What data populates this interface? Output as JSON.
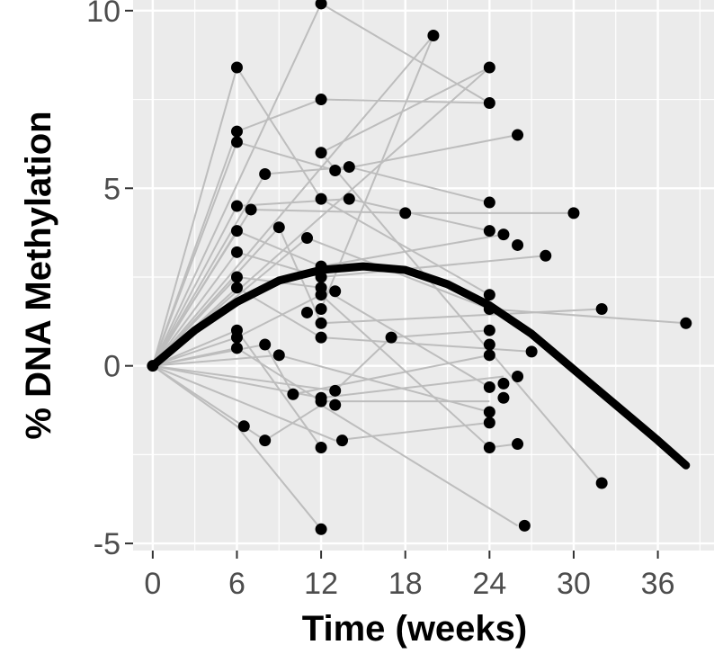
{
  "chart_data": {
    "type": "scatter",
    "title": "",
    "xlabel": "Time (weeks)",
    "ylabel": "% DNA Methylation",
    "xlim": [
      -1.4,
      40.0
    ],
    "ylim": [
      -5.2,
      10.3
    ],
    "x_ticks": [
      0,
      6,
      12,
      18,
      24,
      30,
      36
    ],
    "y_ticks": [
      -5,
      0,
      5,
      10
    ],
    "grid": true,
    "legend": "none",
    "colors": {
      "panel_background": "#ebebeb",
      "grid": "#ffffff",
      "points": "#000000",
      "subject_lines": "#bdbdbd",
      "fit_curve": "#000000"
    },
    "series": [
      {
        "kind": "subject-trajectories",
        "trajectories": [
          [
            [
              0,
              0
            ],
            [
              6,
              8.4
            ],
            [
              12,
              4.7
            ],
            [
              24,
              2.0
            ]
          ],
          [
            [
              0,
              0
            ],
            [
              12,
              10.2
            ],
            [
              24,
              7.4
            ]
          ],
          [
            [
              0,
              0
            ],
            [
              20,
              9.3
            ],
            [
              12,
              1.6
            ]
          ],
          [
            [
              0,
              0
            ],
            [
              24,
              8.4
            ],
            [
              12,
              6.0
            ],
            [
              32,
              -3.3
            ]
          ],
          [
            [
              0,
              0
            ],
            [
              6,
              6.6
            ],
            [
              12,
              7.5
            ],
            [
              24,
              7.4
            ]
          ],
          [
            [
              0,
              0
            ],
            [
              6,
              6.3
            ],
            [
              13,
              5.5
            ],
            [
              26,
              6.5
            ]
          ],
          [
            [
              0,
              0
            ],
            [
              8,
              5.4
            ],
            [
              14,
              5.6
            ],
            [
              24,
              4.6
            ]
          ],
          [
            [
              0,
              0
            ],
            [
              6,
              4.5
            ],
            [
              14,
              4.7
            ],
            [
              24,
              3.8
            ]
          ],
          [
            [
              0,
              0
            ],
            [
              7,
              4.4
            ],
            [
              18,
              4.3
            ],
            [
              30,
              4.3
            ]
          ],
          [
            [
              0,
              0
            ],
            [
              6,
              3.8
            ],
            [
              12,
              2.8
            ],
            [
              25,
              3.7
            ]
          ],
          [
            [
              0,
              0
            ],
            [
              6,
              3.2
            ],
            [
              12,
              2.5
            ],
            [
              28,
              3.1
            ]
          ],
          [
            [
              0,
              0
            ],
            [
              9,
              3.9
            ],
            [
              12,
              1.2
            ],
            [
              32,
              1.6
            ]
          ],
          [
            [
              0,
              0
            ],
            [
              11,
              3.6
            ],
            [
              24,
              1.6
            ],
            [
              38,
              1.2
            ]
          ],
          [
            [
              0,
              0
            ],
            [
              6,
              2.5
            ],
            [
              12,
              2.2
            ],
            [
              24,
              -0.6
            ]
          ],
          [
            [
              0,
              0
            ],
            [
              6,
              2.2
            ],
            [
              12,
              0.8
            ],
            [
              27,
              0.4
            ]
          ],
          [
            [
              0,
              0
            ],
            [
              6,
              1.0
            ],
            [
              12,
              -2.3
            ]
          ],
          [
            [
              0,
              0
            ],
            [
              6,
              0.8
            ],
            [
              12,
              2.0
            ],
            [
              24,
              -2.3
            ],
            [
              26,
              -2.2
            ]
          ],
          [
            [
              0,
              0
            ],
            [
              6,
              0.5
            ],
            [
              12,
              -1.0
            ],
            [
              24,
              -1.0
            ]
          ],
          [
            [
              0,
              0
            ],
            [
              8,
              0.6
            ],
            [
              10,
              -0.8
            ],
            [
              24,
              0.3
            ]
          ],
          [
            [
              0,
              0
            ],
            [
              9,
              0.3
            ],
            [
              24,
              -1.3
            ]
          ],
          [
            [
              0,
              0
            ],
            [
              6,
              -1.7
            ],
            [
              12,
              -4.6
            ]
          ],
          [
            [
              0,
              0
            ],
            [
              8,
              -2.1
            ],
            [
              12,
              -1.1
            ],
            [
              26,
              -4.5
            ]
          ],
          [
            [
              0,
              0
            ],
            [
              13,
              -0.7
            ],
            [
              17,
              0.8
            ],
            [
              24,
              1.0
            ]
          ],
          [
            [
              0,
              0
            ],
            [
              13,
              -2.1
            ],
            [
              24,
              -1.6
            ]
          ],
          [
            [
              0,
              0
            ],
            [
              12,
              -0.9
            ],
            [
              25,
              -0.3
            ]
          ]
        ]
      },
      {
        "kind": "points",
        "points": [
          [
            0,
            0
          ],
          [
            6,
            8.4
          ],
          [
            6,
            6.6
          ],
          [
            6,
            6.3
          ],
          [
            6,
            4.5
          ],
          [
            6,
            3.8
          ],
          [
            6,
            3.2
          ],
          [
            6,
            2.5
          ],
          [
            6,
            2.2
          ],
          [
            6,
            1.0
          ],
          [
            6,
            0.8
          ],
          [
            6,
            0.5
          ],
          [
            6.5,
            -1.7
          ],
          [
            7,
            4.4
          ],
          [
            8,
            5.4
          ],
          [
            8,
            0.6
          ],
          [
            8,
            -2.1
          ],
          [
            9,
            3.9
          ],
          [
            9,
            0.3
          ],
          [
            10,
            -0.8
          ],
          [
            11,
            3.6
          ],
          [
            11,
            1.5
          ],
          [
            12,
            10.2
          ],
          [
            12,
            7.5
          ],
          [
            12,
            6.0
          ],
          [
            12,
            4.7
          ],
          [
            12,
            2.8
          ],
          [
            12,
            2.5
          ],
          [
            12,
            2.2
          ],
          [
            12,
            2.0
          ],
          [
            12,
            1.6
          ],
          [
            12,
            1.2
          ],
          [
            12,
            0.8
          ],
          [
            12,
            -0.9
          ],
          [
            12,
            -1.0
          ],
          [
            12,
            -2.3
          ],
          [
            12,
            -4.6
          ],
          [
            13,
            5.5
          ],
          [
            13,
            2.1
          ],
          [
            13,
            -0.7
          ],
          [
            13,
            -1.1
          ],
          [
            13.5,
            -2.1
          ],
          [
            14,
            5.6
          ],
          [
            14,
            4.7
          ],
          [
            17,
            0.8
          ],
          [
            18,
            4.3
          ],
          [
            20,
            9.3
          ],
          [
            24,
            8.4
          ],
          [
            24,
            7.4
          ],
          [
            24,
            4.6
          ],
          [
            24,
            3.8
          ],
          [
            24,
            2.0
          ],
          [
            24,
            1.6
          ],
          [
            24,
            1.0
          ],
          [
            24,
            0.6
          ],
          [
            24,
            0.3
          ],
          [
            24,
            -0.6
          ],
          [
            24,
            -1.3
          ],
          [
            24,
            -1.6
          ],
          [
            24,
            -2.3
          ],
          [
            25,
            3.7
          ],
          [
            25,
            -0.5
          ],
          [
            25,
            -0.9
          ],
          [
            26,
            3.4
          ],
          [
            26,
            -0.3
          ],
          [
            26,
            -2.2
          ],
          [
            26,
            6.5
          ],
          [
            26.5,
            -4.5
          ],
          [
            27,
            0.4
          ],
          [
            28,
            3.1
          ],
          [
            30,
            4.3
          ],
          [
            32,
            1.6
          ],
          [
            32,
            -3.3
          ],
          [
            38,
            1.2
          ]
        ]
      },
      {
        "kind": "fitted-curve",
        "points": [
          [
            0,
            0
          ],
          [
            3,
            1.0
          ],
          [
            6,
            1.8
          ],
          [
            9,
            2.4
          ],
          [
            12,
            2.7
          ],
          [
            15,
            2.8
          ],
          [
            18,
            2.7
          ],
          [
            21,
            2.3
          ],
          [
            24,
            1.7
          ],
          [
            27,
            0.9
          ],
          [
            30,
            -0.1
          ],
          [
            33,
            -1.1
          ],
          [
            36,
            -2.1
          ],
          [
            38,
            -2.8
          ]
        ]
      }
    ]
  }
}
